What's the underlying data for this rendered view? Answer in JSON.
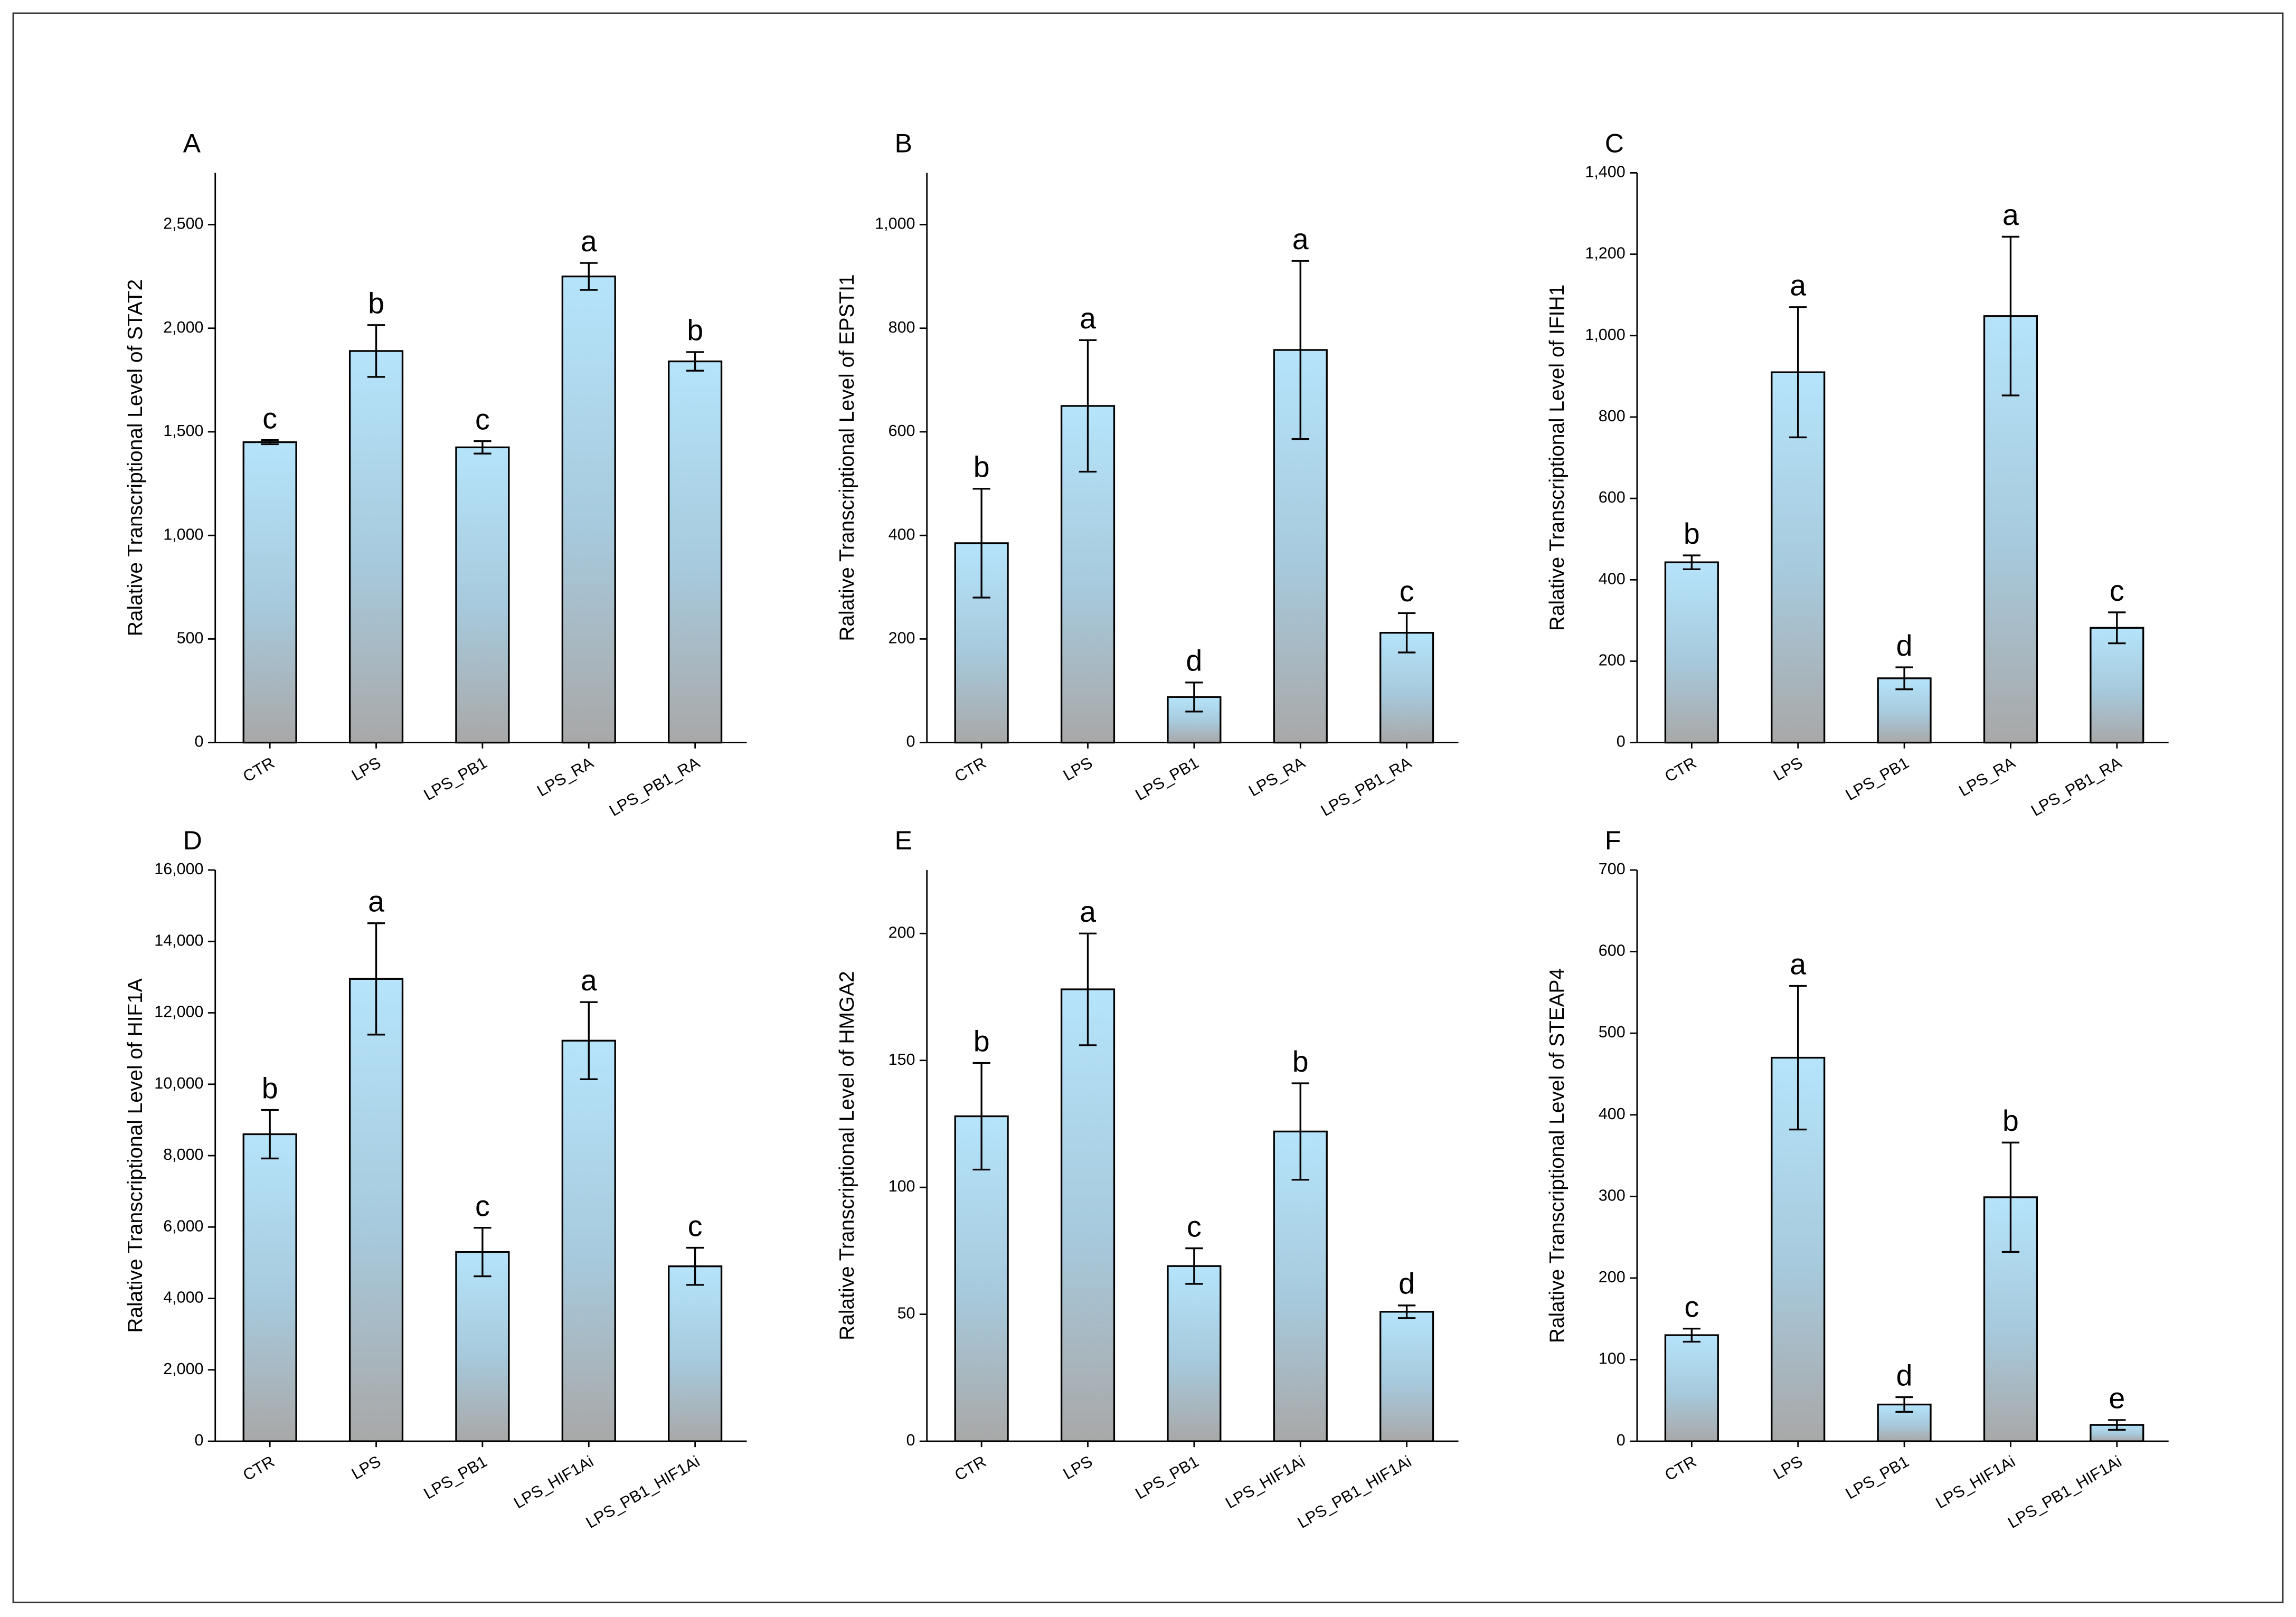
{
  "chart_data": [
    {
      "type": "bar",
      "title": "A",
      "ylabel": "Ralative Transcriptional Level of  STAT2",
      "categories": [
        "CTR",
        "LPS",
        "LPS_PB1",
        "LPS_RA",
        "LPS_PB1_RA"
      ],
      "values": [
        1450,
        1890,
        1425,
        2250,
        1840
      ],
      "errors": [
        10,
        125,
        30,
        65,
        45
      ],
      "annotations": [
        "c",
        "b",
        "c",
        "a",
        "b"
      ],
      "ylim": [
        0,
        2750
      ],
      "yticks": [
        0,
        500,
        {
          "value": 1000,
          "label": "1,000"
        },
        {
          "value": 1500,
          "label": "1,500"
        },
        {
          "value": 2000,
          "label": "2,000"
        },
        {
          "value": 2500,
          "label": "2,500"
        }
      ]
    },
    {
      "type": "bar",
      "title": "B",
      "ylabel": "Ralative Transcriptional Level of  EPSTI1",
      "categories": [
        "CTR",
        "LPS",
        "LPS_PB1",
        "LPS_RA",
        "LPS_PB1_RA"
      ],
      "values": [
        385,
        650,
        88,
        758,
        212
      ],
      "errors": [
        105,
        127,
        28,
        172,
        38
      ],
      "annotations": [
        "b",
        "a",
        "d",
        "a",
        "c"
      ],
      "ylim": [
        0,
        1100
      ],
      "yticks": [
        0,
        200,
        400,
        600,
        800,
        {
          "value": 1000,
          "label": "1,000"
        }
      ]
    },
    {
      "type": "bar",
      "title": "C",
      "ylabel": "Ralative Transcriptional Level of  IFIH1",
      "categories": [
        "CTR",
        "LPS",
        "LPS_PB1",
        "LPS_RA",
        "LPS_PB1_RA"
      ],
      "values": [
        443,
        910,
        158,
        1048,
        282
      ],
      "errors": [
        17,
        160,
        27,
        195,
        38
      ],
      "annotations": [
        "b",
        "a",
        "d",
        "a",
        "c"
      ],
      "ylim": [
        0,
        1400
      ],
      "yticks": [
        0,
        200,
        400,
        600,
        800,
        {
          "value": 1000,
          "label": "1,000"
        },
        {
          "value": 1200,
          "label": "1,200"
        },
        {
          "value": 1400,
          "label": "1,400"
        }
      ]
    },
    {
      "type": "bar",
      "title": "D",
      "ylabel": "Ralative Transcriptional Level of  HIF1A",
      "categories": [
        "CTR",
        "LPS",
        "LPS_PB1",
        "LPS_HIF1Ai",
        "LPS_PB1_HIF1Ai"
      ],
      "values": [
        8600,
        12950,
        5300,
        11220,
        4900
      ],
      "errors": [
        680,
        1560,
        680,
        1080,
        520
      ],
      "annotations": [
        "b",
        "a",
        "c",
        "a",
        "c"
      ],
      "ylim": [
        0,
        16000
      ],
      "yticks": [
        0,
        {
          "value": 2000,
          "label": "2,000"
        },
        {
          "value": 4000,
          "label": "4,000"
        },
        {
          "value": 6000,
          "label": "6,000"
        },
        {
          "value": 8000,
          "label": "8,000"
        },
        {
          "value": 10000,
          "label": "10,000"
        },
        {
          "value": 12000,
          "label": "12,000"
        },
        {
          "value": 14000,
          "label": "14,000"
        },
        {
          "value": 16000,
          "label": "16,000"
        }
      ]
    },
    {
      "type": "bar",
      "title": "E",
      "ylabel": "Ralative Transcriptional Level of  HMGA2",
      "categories": [
        "CTR",
        "LPS",
        "LPS_PB1",
        "LPS_HIF1Ai",
        "LPS_PB1_HIF1Ai"
      ],
      "values": [
        128,
        178,
        69,
        122,
        51
      ],
      "errors": [
        21,
        22,
        7,
        19,
        2.5
      ],
      "annotations": [
        "b",
        "a",
        "c",
        "b",
        "d"
      ],
      "ylim": [
        0,
        225
      ],
      "yticks": [
        0,
        50,
        100,
        150,
        200
      ]
    },
    {
      "type": "bar",
      "title": "F",
      "ylabel": "Ralative Transcriptional Level of  STEAP4",
      "categories": [
        "CTR",
        "LPS",
        "LPS_PB1",
        "LPS_HIF1Ai",
        "LPS_PB1_HIF1Ai"
      ],
      "values": [
        130,
        470,
        45,
        299,
        20
      ],
      "errors": [
        8,
        88,
        9,
        67,
        6
      ],
      "annotations": [
        "c",
        "a",
        "d",
        "b",
        "e"
      ],
      "ylim": [
        0,
        700
      ],
      "yticks": [
        0,
        100,
        200,
        300,
        400,
        500,
        600,
        700
      ]
    }
  ]
}
